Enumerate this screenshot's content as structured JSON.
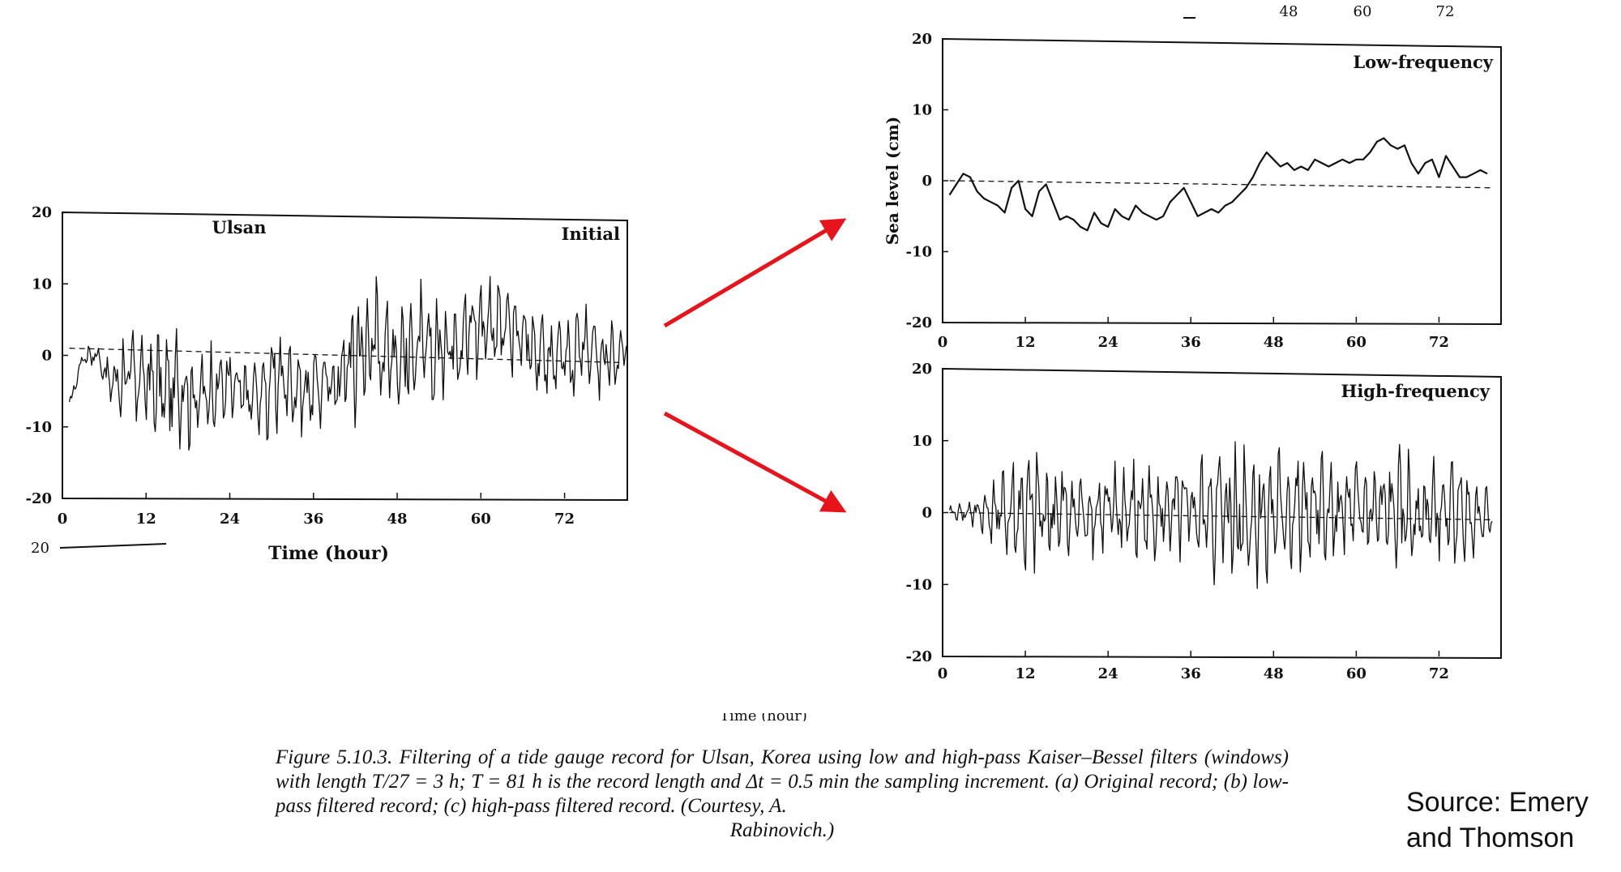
{
  "caption": {
    "text": "Figure 5.10.3. Filtering of a tide gauge record for Ulsan, Korea using low and high-pass Kaiser–Bessel filters (windows) with length T/27 = 3 h; T = 81 h is the record length and Δt = 0.5 min the sampling increment. (a) Original record; (b) low-pass filtered record; (c) high-pass filtered record. (Courtesy, A.",
    "last_line": "Rabinovich.)"
  },
  "source": {
    "line1": "Source: Emery",
    "line2": "and Thomson"
  },
  "fragments": {
    "top_ticks": [
      "48",
      "60",
      "72"
    ],
    "left_cut_tick": "20",
    "right_cut_xlabel": "Time (hour)"
  },
  "colors": {
    "arrow": "#e8141b",
    "ink": "#111111"
  },
  "chart_data": [
    {
      "type": "line",
      "labels": [
        "Ulsan",
        "Initial"
      ],
      "xlabel": "Time (hour)",
      "ylabel": "",
      "xlim": [
        0,
        81
      ],
      "ylim": [
        -20,
        20
      ],
      "x_ticks": [
        "0",
        "12",
        "24",
        "36",
        "48",
        "60",
        "72"
      ],
      "y_ticks": [
        "20",
        "10",
        "0",
        "-10",
        "-20"
      ],
      "x": [
        0,
        2,
        4,
        6,
        8,
        10,
        12,
        14,
        16,
        18,
        20,
        22,
        24,
        26,
        28,
        30,
        32,
        34,
        36,
        38,
        40,
        42,
        44,
        46,
        48,
        50,
        52,
        54,
        56,
        58,
        60,
        62,
        64,
        66,
        68,
        70,
        72,
        74,
        76,
        78,
        80
      ],
      "values": [
        -7,
        0,
        0,
        -4,
        -3,
        -3,
        -4,
        -5,
        -4,
        -6,
        -5,
        -4,
        -5,
        -6,
        -5,
        -3,
        -4,
        -5,
        -4,
        -4,
        -1,
        1,
        2,
        1,
        0,
        1,
        0,
        2,
        3,
        4,
        5,
        4,
        3,
        2,
        0,
        -1,
        0,
        1,
        0,
        -1,
        1
      ],
      "envelope": [
        1,
        2,
        2,
        5,
        9,
        10,
        11,
        11,
        10,
        9,
        8,
        8,
        7,
        8,
        9,
        9,
        8,
        8,
        8,
        9,
        12,
        14,
        13,
        12,
        12,
        11,
        11,
        11,
        10,
        10,
        9,
        9,
        8,
        9,
        9,
        9,
        9,
        8,
        8,
        7,
        5
      ],
      "baseline": {
        "start": 1.0,
        "end": -1.0
      }
    },
    {
      "type": "line",
      "labels": [
        "Low-frequency"
      ],
      "xlabel": "",
      "ylabel": "Sea level (cm)",
      "xlim": [
        0,
        81
      ],
      "ylim": [
        -20,
        20
      ],
      "x_ticks": [
        "0",
        "12",
        "24",
        "36",
        "48",
        "60",
        "72"
      ],
      "y_ticks": [
        "20",
        "10",
        "0",
        "-10",
        "-20"
      ],
      "x": [
        0,
        1,
        2,
        3,
        4,
        5,
        6,
        7,
        8,
        9,
        10,
        11,
        12,
        13,
        14,
        15,
        16,
        17,
        18,
        19,
        20,
        21,
        22,
        23,
        24,
        25,
        26,
        27,
        28,
        29,
        30,
        31,
        32,
        33,
        34,
        35,
        36,
        37,
        38,
        39,
        40,
        41,
        42,
        43,
        44,
        45,
        46,
        47,
        48,
        49,
        50,
        51,
        52,
        53,
        54,
        55,
        56,
        57,
        58,
        59,
        60,
        61,
        62,
        63,
        64,
        65,
        66,
        67,
        68,
        69,
        70,
        71,
        72,
        73,
        74,
        75,
        76,
        77,
        78
      ],
      "values": [
        -2,
        -0.5,
        1,
        0.5,
        -1.5,
        -2.5,
        -3,
        -3.5,
        -4.5,
        -1,
        0,
        -4,
        -5,
        -1.5,
        -0.5,
        -3,
        -5.5,
        -5,
        -5.5,
        -6.5,
        -7,
        -4.5,
        -6,
        -6.5,
        -4,
        -5,
        -5.5,
        -3.5,
        -4.5,
        -5,
        -5.5,
        -5,
        -3,
        -2,
        -1,
        -3,
        -5,
        -4.5,
        -4,
        -4.5,
        -3.5,
        -3,
        -2,
        -1,
        0.5,
        2.5,
        4,
        3,
        2,
        2.5,
        1.5,
        2,
        1.5,
        3,
        2.5,
        2,
        2.5,
        3,
        2.5,
        3,
        3,
        4,
        5.5,
        6,
        5,
        4.5,
        5,
        2.5,
        1,
        2.5,
        3,
        0.5,
        3.5,
        2,
        0.5,
        0.5,
        1,
        1.5,
        1
      ],
      "baseline": {
        "start": 0.0,
        "end": -1.0
      }
    },
    {
      "type": "line",
      "labels": [
        "High-frequency"
      ],
      "xlabel": "Time (hour)",
      "ylabel": "",
      "xlim": [
        0,
        81
      ],
      "ylim": [
        -20,
        20
      ],
      "x_ticks": [
        "0",
        "12",
        "24",
        "36",
        "48",
        "60",
        "72"
      ],
      "y_ticks": [
        "20",
        "10",
        "0",
        "-10",
        "-20"
      ],
      "x": [
        0,
        2,
        4,
        6,
        8,
        10,
        12,
        14,
        16,
        18,
        20,
        22,
        24,
        26,
        28,
        30,
        32,
        34,
        36,
        38,
        40,
        42,
        44,
        46,
        48,
        50,
        52,
        54,
        56,
        58,
        60,
        62,
        64,
        66,
        68,
        70,
        72,
        74,
        76,
        78
      ],
      "envelope": [
        1,
        2,
        3,
        5,
        9,
        11,
        11,
        10,
        10,
        8,
        8,
        7,
        8,
        9,
        9,
        8,
        8,
        8,
        9,
        12,
        15,
        14,
        13,
        12,
        11,
        11,
        11,
        10,
        10,
        9,
        9,
        8,
        9,
        10,
        9,
        9,
        9,
        8,
        7,
        4
      ],
      "baseline": {
        "start": 0.0,
        "end": -1.0
      }
    }
  ]
}
